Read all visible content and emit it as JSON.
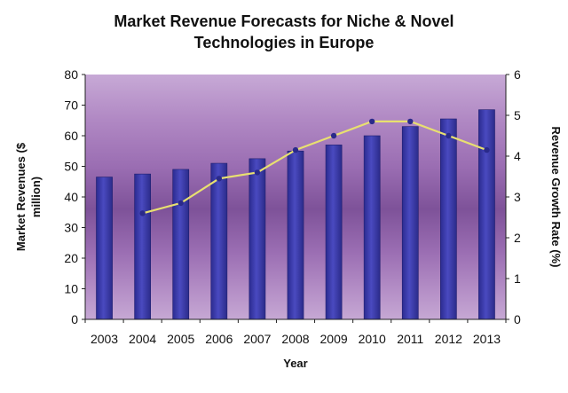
{
  "chart_data": {
    "type": "bar",
    "title_line1": "Market Revenue Forecasts for Niche & Novel",
    "title_line2": "Technologies in Europe",
    "xlabel": "Year",
    "ylabel": "Market Revenues ($ million)",
    "ylabel_line1": "Market Revenues ($",
    "ylabel_line2": "million)",
    "y2label": "Revenue Growth Rate (%)",
    "categories": [
      "2003",
      "2004",
      "2005",
      "2006",
      "2007",
      "2008",
      "2009",
      "2010",
      "2011",
      "2012",
      "2013"
    ],
    "ylim": [
      0,
      80
    ],
    "yticks": [
      0,
      10,
      20,
      30,
      40,
      50,
      60,
      70,
      80
    ],
    "y2lim": [
      0,
      6
    ],
    "y2ticks": [
      0,
      1,
      2,
      3,
      4,
      5,
      6
    ],
    "grid": false,
    "series": [
      {
        "type": "bar",
        "axis": "left",
        "values": [
          46.5,
          47.5,
          49,
          51,
          52.5,
          55,
          57,
          60,
          63,
          65.5,
          68.5
        ],
        "color": "#3a3aa8"
      },
      {
        "type": "line",
        "axis": "right",
        "values": [
          null,
          2.6,
          2.85,
          3.45,
          3.6,
          4.15,
          4.5,
          4.85,
          4.85,
          4.5,
          4.15
        ],
        "color": "#e8e070",
        "marker_color": "#2a2a8a"
      }
    ]
  }
}
